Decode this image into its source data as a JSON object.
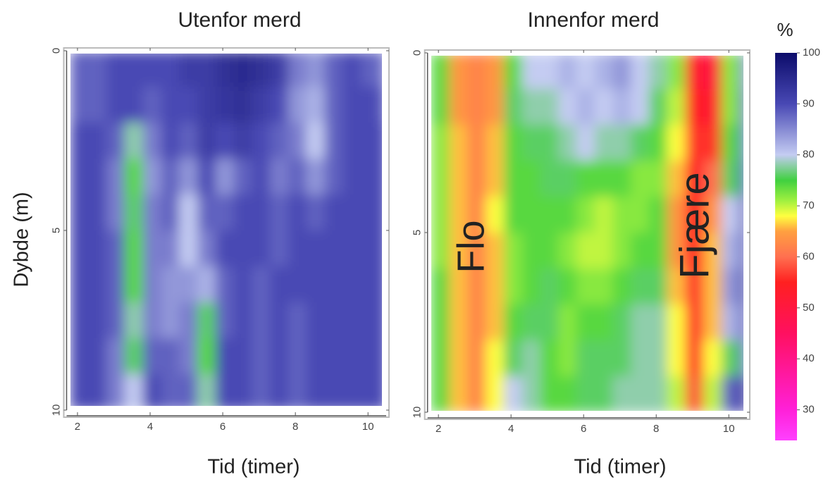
{
  "chart_data": [
    {
      "type": "heatmap",
      "title": "Utenfor merd",
      "xlabel": "Tid (timer)",
      "ylabel": "Dybde (m)",
      "xlim": [
        1.7,
        10.5
      ],
      "ylim": [
        0,
        10
      ],
      "y_inverted": true,
      "xticks": [
        2,
        4,
        6,
        8,
        10
      ],
      "yticks": [
        0,
        5,
        10
      ],
      "xbins": [
        1.8,
        2.3,
        2.8,
        3.3,
        3.8,
        4.3,
        4.8,
        5.3,
        5.8,
        6.3,
        6.8,
        7.3,
        7.8,
        8.3,
        8.8,
        9.3,
        9.8,
        10.3,
        10.5
      ],
      "ybins": [
        0,
        1,
        2,
        3,
        4,
        5,
        6,
        7,
        8,
        9,
        10
      ],
      "values": [
        [
          88,
          88,
          90,
          90,
          90,
          90,
          92,
          92,
          94,
          95,
          94,
          92,
          86,
          84,
          88,
          90,
          88,
          86
        ],
        [
          88,
          88,
          90,
          90,
          88,
          90,
          90,
          92,
          93,
          94,
          92,
          90,
          84,
          82,
          88,
          90,
          90,
          88
        ],
        [
          90,
          90,
          88,
          78,
          86,
          90,
          88,
          92,
          90,
          92,
          90,
          88,
          86,
          80,
          88,
          90,
          90,
          90
        ],
        [
          90,
          90,
          86,
          74,
          84,
          88,
          84,
          90,
          84,
          88,
          90,
          86,
          88,
          84,
          88,
          90,
          90,
          90
        ],
        [
          90,
          90,
          86,
          76,
          86,
          88,
          80,
          88,
          88,
          90,
          90,
          88,
          90,
          88,
          90,
          90,
          90,
          90
        ],
        [
          90,
          90,
          88,
          74,
          86,
          86,
          80,
          86,
          90,
          90,
          90,
          88,
          90,
          90,
          90,
          90,
          90,
          90
        ],
        [
          90,
          90,
          88,
          74,
          86,
          84,
          84,
          82,
          88,
          90,
          88,
          90,
          90,
          90,
          90,
          90,
          90,
          90
        ],
        [
          90,
          90,
          88,
          78,
          86,
          84,
          86,
          76,
          88,
          90,
          88,
          90,
          88,
          90,
          90,
          90,
          90,
          90
        ],
        [
          90,
          90,
          86,
          76,
          88,
          88,
          86,
          74,
          90,
          90,
          88,
          90,
          88,
          90,
          90,
          90,
          90,
          90
        ],
        [
          90,
          90,
          86,
          80,
          90,
          88,
          88,
          78,
          90,
          90,
          88,
          90,
          88,
          90,
          90,
          90,
          90,
          90
        ]
      ]
    },
    {
      "type": "heatmap",
      "title": "Innenfor merd",
      "xlabel": "Tid (timer)",
      "xlim": [
        1.7,
        10.5
      ],
      "ylim": [
        0,
        10
      ],
      "y_inverted": true,
      "xticks": [
        2,
        4,
        6,
        8,
        10
      ],
      "yticks": [
        0,
        5,
        10
      ],
      "annotations": [
        "Flo",
        "Fjære"
      ],
      "xbins": [
        1.8,
        2.3,
        2.8,
        3.3,
        3.8,
        4.3,
        4.8,
        5.3,
        5.8,
        6.3,
        6.8,
        7.3,
        7.8,
        8.3,
        8.8,
        9.3,
        9.8,
        10.3,
        10.5
      ],
      "ybins": [
        0,
        1,
        2,
        3,
        4,
        5,
        6,
        7,
        8,
        9,
        10
      ],
      "values": [
        [
          74,
          64,
          62,
          64,
          74,
          80,
          80,
          82,
          80,
          82,
          84,
          80,
          78,
          72,
          52,
          50,
          72,
          86
        ],
        [
          74,
          64,
          62,
          64,
          76,
          78,
          78,
          80,
          82,
          80,
          82,
          80,
          76,
          70,
          54,
          52,
          72,
          88
        ],
        [
          72,
          66,
          62,
          66,
          74,
          76,
          76,
          78,
          80,
          78,
          78,
          76,
          74,
          68,
          56,
          56,
          74,
          88
        ],
        [
          72,
          66,
          62,
          66,
          74,
          74,
          76,
          76,
          74,
          74,
          74,
          72,
          72,
          66,
          54,
          60,
          76,
          90
        ],
        [
          72,
          66,
          62,
          68,
          74,
          74,
          74,
          74,
          72,
          70,
          72,
          72,
          74,
          64,
          54,
          64,
          80,
          90
        ],
        [
          72,
          66,
          62,
          66,
          72,
          74,
          74,
          72,
          70,
          70,
          72,
          74,
          74,
          64,
          54,
          66,
          82,
          90
        ],
        [
          74,
          66,
          62,
          66,
          72,
          74,
          76,
          74,
          72,
          72,
          74,
          76,
          76,
          66,
          56,
          66,
          84,
          92
        ],
        [
          74,
          66,
          62,
          66,
          74,
          76,
          76,
          72,
          74,
          74,
          76,
          78,
          78,
          68,
          56,
          66,
          82,
          90
        ],
        [
          74,
          66,
          62,
          68,
          76,
          78,
          74,
          72,
          76,
          76,
          76,
          78,
          78,
          68,
          56,
          68,
          76,
          88
        ],
        [
          74,
          66,
          62,
          68,
          80,
          78,
          74,
          74,
          76,
          76,
          78,
          78,
          78,
          70,
          58,
          70,
          88,
          94
        ]
      ],
      "colorbar": {
        "title": "%",
        "lim": [
          24,
          100
        ],
        "ticks": [
          30,
          40,
          50,
          60,
          70,
          80,
          90,
          100
        ],
        "colorscale": [
          [
            24,
            "#ff40ff"
          ],
          [
            30,
            "#ff20d8"
          ],
          [
            45,
            "#ff1060"
          ],
          [
            55,
            "#ff2020"
          ],
          [
            60,
            "#ff7050"
          ],
          [
            65,
            "#ffa040"
          ],
          [
            68,
            "#ffff40"
          ],
          [
            71,
            "#a0f040"
          ],
          [
            75,
            "#40d040"
          ],
          [
            80,
            "#c4ccf2"
          ],
          [
            90,
            "#4848b4"
          ],
          [
            100,
            "#0c0c6a"
          ]
        ]
      }
    }
  ]
}
